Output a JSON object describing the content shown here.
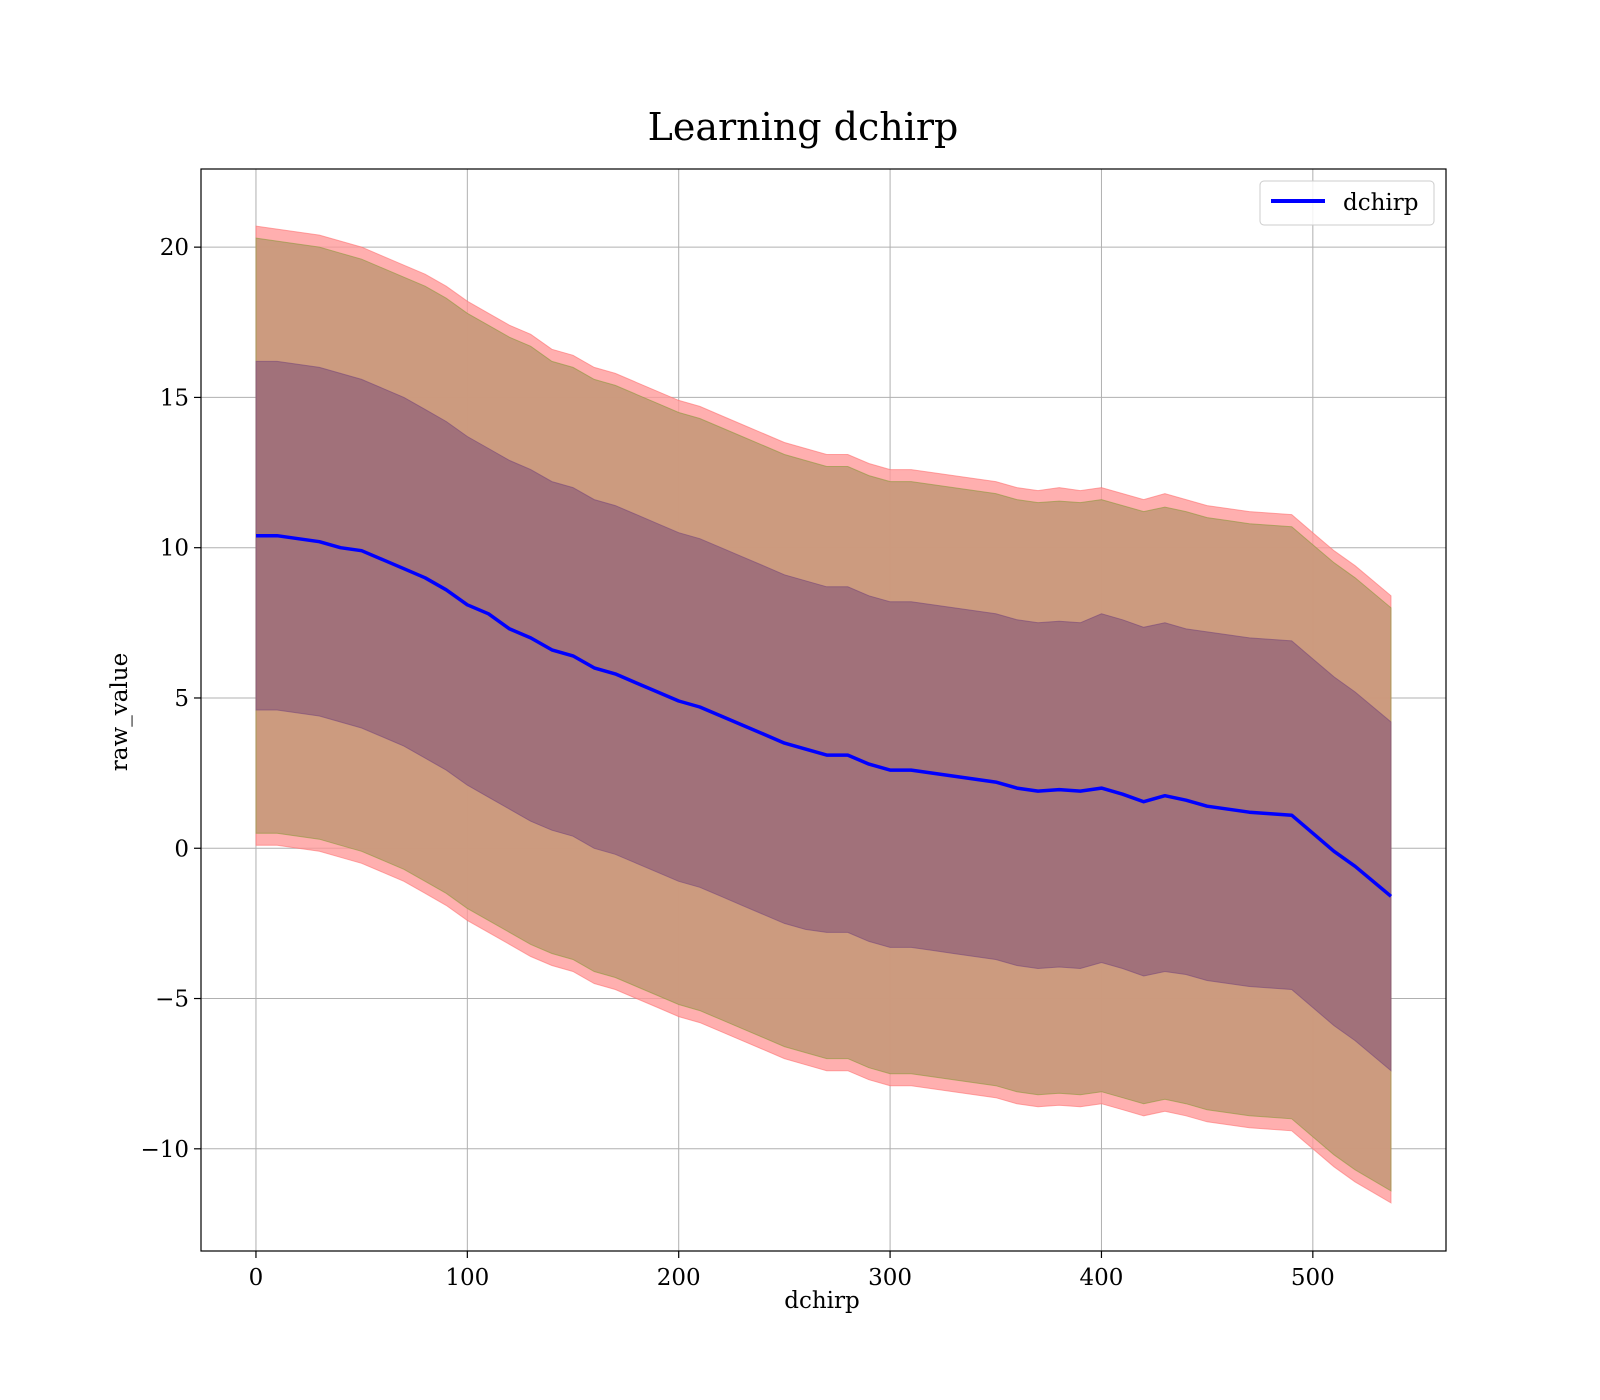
{
  "chart_data": {
    "type": "area",
    "title": "Learning dchirp",
    "xlabel": "dchirp",
    "ylabel": "raw_value",
    "xlim": [
      -26,
      563
    ],
    "ylim": [
      -13.4,
      22.6
    ],
    "x_ticks": [
      0,
      100,
      200,
      300,
      400,
      500
    ],
    "y_ticks": [
      -10,
      -5,
      0,
      5,
      10,
      15,
      20
    ],
    "x_tick_labels": [
      "0",
      "100",
      "200",
      "300",
      "400",
      "500"
    ],
    "y_tick_labels": [
      "−10",
      "−5",
      "0",
      "5",
      "10",
      "15",
      "20"
    ],
    "grid": true,
    "legend": {
      "position": "top-right",
      "entries": [
        "dchirp"
      ]
    },
    "x": [
      0,
      10,
      20,
      30,
      40,
      50,
      60,
      70,
      80,
      90,
      100,
      110,
      120,
      130,
      140,
      150,
      160,
      170,
      180,
      190,
      200,
      210,
      220,
      230,
      240,
      250,
      260,
      270,
      280,
      290,
      300,
      310,
      320,
      330,
      340,
      350,
      360,
      370,
      380,
      390,
      400,
      410,
      420,
      430,
      440,
      450,
      460,
      470,
      480,
      490,
      500,
      510,
      520,
      537
    ],
    "series": [
      {
        "name": "dchirp",
        "color": "#0000ff",
        "type": "line",
        "values": [
          10.4,
          10.4,
          10.3,
          10.2,
          10.0,
          9.9,
          9.6,
          9.3,
          9.0,
          8.6,
          8.1,
          7.8,
          7.3,
          7.0,
          6.6,
          6.4,
          6.0,
          5.8,
          5.5,
          5.2,
          4.9,
          4.7,
          4.4,
          4.1,
          3.8,
          3.5,
          3.3,
          3.1,
          3.1,
          2.8,
          2.6,
          2.6,
          2.5,
          2.4,
          2.3,
          2.2,
          2.0,
          1.9,
          1.95,
          1.9,
          2.0,
          1.8,
          1.55,
          1.75,
          1.6,
          1.4,
          1.3,
          1.2,
          1.15,
          1.1,
          0.5,
          -0.1,
          -0.6,
          -1.6
        ]
      },
      {
        "name": "",
        "color": "#ff0000",
        "type": "band-outer",
        "upper": [
          20.7,
          20.6,
          20.5,
          20.4,
          20.2,
          20.0,
          19.7,
          19.4,
          19.1,
          18.7,
          18.2,
          17.8,
          17.4,
          17.1,
          16.6,
          16.4,
          16.0,
          15.8,
          15.5,
          15.2,
          14.9,
          14.7,
          14.4,
          14.1,
          13.8,
          13.5,
          13.3,
          13.1,
          13.1,
          12.8,
          12.6,
          12.6,
          12.5,
          12.4,
          12.3,
          12.2,
          12.0,
          11.9,
          12.0,
          11.9,
          12.0,
          11.8,
          11.6,
          11.8,
          11.6,
          11.4,
          11.3,
          11.2,
          11.15,
          11.1,
          10.5,
          9.9,
          9.4,
          8.4
        ],
        "lower": [
          0.1,
          0.1,
          0.0,
          -0.1,
          -0.3,
          -0.5,
          -0.8,
          -1.1,
          -1.5,
          -1.9,
          -2.4,
          -2.8,
          -3.2,
          -3.6,
          -3.9,
          -4.1,
          -4.5,
          -4.7,
          -5.0,
          -5.3,
          -5.6,
          -5.8,
          -6.1,
          -6.4,
          -6.7,
          -7.0,
          -7.2,
          -7.4,
          -7.4,
          -7.7,
          -7.9,
          -7.9,
          -8.0,
          -8.1,
          -8.2,
          -8.3,
          -8.5,
          -8.6,
          -8.55,
          -8.6,
          -8.5,
          -8.7,
          -8.9,
          -8.75,
          -8.9,
          -9.1,
          -9.2,
          -9.3,
          -9.35,
          -9.4,
          -10.0,
          -10.6,
          -11.1,
          -11.8
        ]
      },
      {
        "name": "",
        "color": "#8c9a3a",
        "type": "band-middle",
        "upper": [
          20.3,
          20.2,
          20.1,
          20.0,
          19.8,
          19.6,
          19.3,
          19.0,
          18.7,
          18.3,
          17.8,
          17.4,
          17.0,
          16.7,
          16.2,
          16.0,
          15.6,
          15.4,
          15.1,
          14.8,
          14.5,
          14.3,
          14.0,
          13.7,
          13.4,
          13.1,
          12.9,
          12.7,
          12.7,
          12.4,
          12.2,
          12.2,
          12.1,
          12.0,
          11.9,
          11.8,
          11.6,
          11.5,
          11.55,
          11.5,
          11.6,
          11.4,
          11.2,
          11.35,
          11.2,
          11.0,
          10.9,
          10.8,
          10.75,
          10.7,
          10.1,
          9.5,
          9.0,
          8.0
        ],
        "lower": [
          0.5,
          0.5,
          0.4,
          0.3,
          0.1,
          -0.1,
          -0.4,
          -0.7,
          -1.1,
          -1.5,
          -2.0,
          -2.4,
          -2.8,
          -3.2,
          -3.5,
          -3.7,
          -4.1,
          -4.3,
          -4.6,
          -4.9,
          -5.2,
          -5.4,
          -5.7,
          -6.0,
          -6.3,
          -6.6,
          -6.8,
          -7.0,
          -7.0,
          -7.3,
          -7.5,
          -7.5,
          -7.6,
          -7.7,
          -7.8,
          -7.9,
          -8.1,
          -8.2,
          -8.15,
          -8.2,
          -8.1,
          -8.3,
          -8.5,
          -8.35,
          -8.5,
          -8.7,
          -8.8,
          -8.9,
          -8.95,
          -9.0,
          -9.6,
          -10.2,
          -10.7,
          -11.4
        ]
      },
      {
        "name": "",
        "color": "#5a2a6a",
        "type": "band-inner",
        "upper": [
          16.2,
          16.2,
          16.1,
          16.0,
          15.8,
          15.6,
          15.3,
          15.0,
          14.6,
          14.2,
          13.7,
          13.3,
          12.9,
          12.6,
          12.2,
          12.0,
          11.6,
          11.4,
          11.1,
          10.8,
          10.5,
          10.3,
          10.0,
          9.7,
          9.4,
          9.1,
          8.9,
          8.7,
          8.7,
          8.4,
          8.2,
          8.2,
          8.1,
          8.0,
          7.9,
          7.8,
          7.6,
          7.5,
          7.55,
          7.5,
          7.8,
          7.6,
          7.35,
          7.5,
          7.3,
          7.2,
          7.1,
          7.0,
          6.95,
          6.9,
          6.3,
          5.7,
          5.2,
          4.2
        ],
        "lower": [
          4.6,
          4.6,
          4.5,
          4.4,
          4.2,
          4.0,
          3.7,
          3.4,
          3.0,
          2.6,
          2.1,
          1.7,
          1.3,
          0.9,
          0.6,
          0.4,
          0.0,
          -0.2,
          -0.5,
          -0.8,
          -1.1,
          -1.3,
          -1.6,
          -1.9,
          -2.2,
          -2.5,
          -2.7,
          -2.8,
          -2.8,
          -3.1,
          -3.3,
          -3.3,
          -3.4,
          -3.5,
          -3.6,
          -3.7,
          -3.9,
          -4.0,
          -3.95,
          -4.0,
          -3.8,
          -4.0,
          -4.25,
          -4.1,
          -4.2,
          -4.4,
          -4.5,
          -4.6,
          -4.65,
          -4.7,
          -5.3,
          -5.9,
          -6.4,
          -7.4
        ]
      }
    ]
  }
}
